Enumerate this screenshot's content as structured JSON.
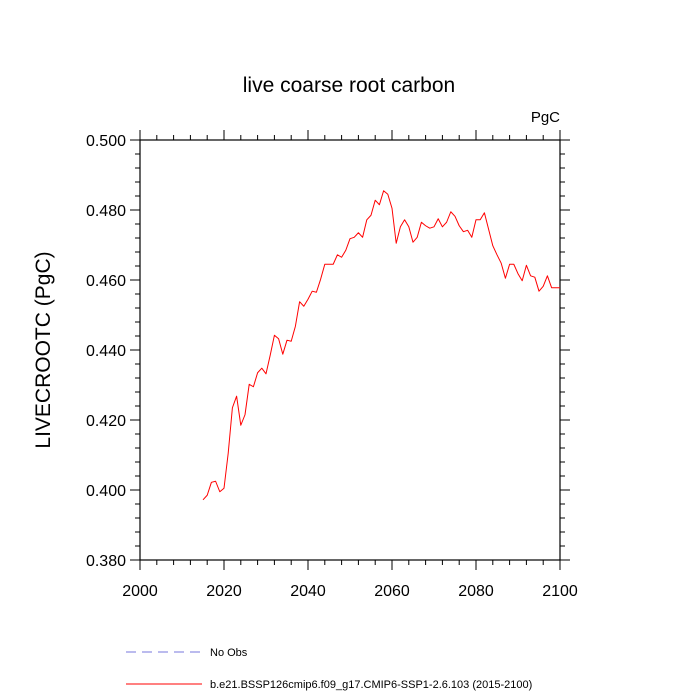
{
  "chart_data": {
    "type": "line",
    "title": "live coarse root carbon",
    "units_label": "PgC",
    "ylabel": "LIVECROOTC  (PgC)",
    "xlabel": "",
    "xlim": [
      2000,
      2100
    ],
    "ylim": [
      0.38,
      0.5
    ],
    "x_ticks": [
      2000,
      2020,
      2040,
      2060,
      2080,
      2100
    ],
    "x_tick_labels": [
      "2000",
      "2020",
      "2040",
      "2060",
      "2080",
      "2100"
    ],
    "y_ticks": [
      0.38,
      0.4,
      0.42,
      0.44,
      0.46,
      0.48,
      0.5
    ],
    "y_tick_labels": [
      "0.380",
      "0.400",
      "0.420",
      "0.440",
      "0.460",
      "0.480",
      "0.500"
    ],
    "grid": false,
    "legend_position": "bottom",
    "series": [
      {
        "name": "b.e21.BSSP126cmip6.f09_g17.CMIP6-SSP1-2.6.103 (2015-2100)",
        "color": "#ff0000",
        "style": "solid",
        "x": [
          2015,
          2016,
          2017,
          2018,
          2019,
          2020,
          2021,
          2022,
          2023,
          2024,
          2025,
          2026,
          2027,
          2028,
          2029,
          2030,
          2031,
          2032,
          2033,
          2034,
          2035,
          2036,
          2037,
          2038,
          2039,
          2040,
          2041,
          2042,
          2043,
          2044,
          2045,
          2046,
          2047,
          2048,
          2049,
          2050,
          2051,
          2052,
          2053,
          2054,
          2055,
          2056,
          2057,
          2058,
          2059,
          2060,
          2061,
          2062,
          2063,
          2064,
          2065,
          2066,
          2067,
          2068,
          2069,
          2070,
          2071,
          2072,
          2073,
          2074,
          2075,
          2076,
          2077,
          2078,
          2079,
          2080,
          2081,
          2082,
          2083,
          2084,
          2085,
          2086,
          2087,
          2088,
          2089,
          2090,
          2091,
          2092,
          2093,
          2094,
          2095,
          2096,
          2097,
          2098,
          2099,
          2100
        ],
        "values": [
          0.3972,
          0.3985,
          0.4022,
          0.4025,
          0.3995,
          0.4005,
          0.4105,
          0.4235,
          0.4268,
          0.4185,
          0.4215,
          0.4302,
          0.4295,
          0.4335,
          0.4348,
          0.4332,
          0.4385,
          0.4442,
          0.4432,
          0.4388,
          0.4428,
          0.4425,
          0.4468,
          0.4538,
          0.4525,
          0.4545,
          0.4568,
          0.4565,
          0.4602,
          0.4645,
          0.4645,
          0.4645,
          0.4672,
          0.4665,
          0.4685,
          0.4718,
          0.4722,
          0.4735,
          0.4722,
          0.4772,
          0.4785,
          0.4828,
          0.4815,
          0.4855,
          0.4845,
          0.4805,
          0.4705,
          0.4752,
          0.4772,
          0.4752,
          0.4708,
          0.4722,
          0.4765,
          0.4755,
          0.4748,
          0.4752,
          0.4775,
          0.4752,
          0.4765,
          0.4795,
          0.4782,
          0.4755,
          0.4738,
          0.4742,
          0.4722,
          0.4772,
          0.4772,
          0.4792,
          0.4745,
          0.4698,
          0.4672,
          0.4648,
          0.4605,
          0.4645,
          0.4645,
          0.4618,
          0.4598,
          0.4642,
          0.4612,
          0.4608,
          0.4568,
          0.4582,
          0.4612,
          0.4578,
          0.4578,
          0.4578
        ]
      }
    ],
    "legend": [
      {
        "label": "No Obs",
        "color": "#7777dd",
        "style": "dashed"
      },
      {
        "label": "b.e21.BSSP126cmip6.f09_g17.CMIP6-SSP1-2.6.103 (2015-2100)",
        "color": "#ff0000",
        "style": "solid"
      }
    ]
  }
}
